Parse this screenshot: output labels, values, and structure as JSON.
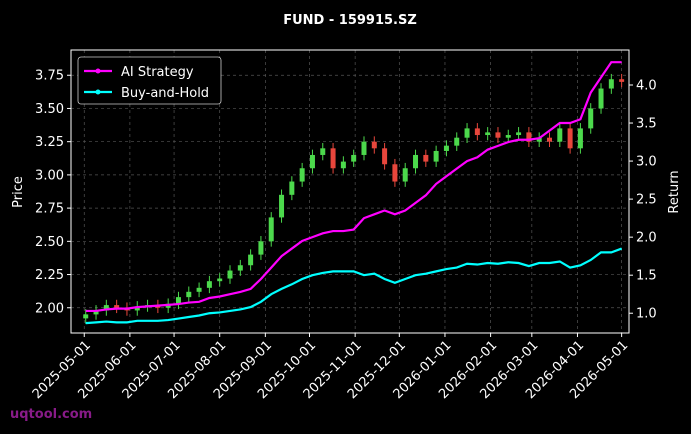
{
  "chart_data": {
    "type": "candlestick_returns",
    "title": "FUND - 159915.SZ",
    "ylabel": "Price",
    "y2label": "Return",
    "watermark": "uqtool.com",
    "x": [
      "2025-05-02",
      "2025-05-09",
      "2025-05-16",
      "2025-05-23",
      "2025-05-30",
      "2025-06-06",
      "2025-06-13",
      "2025-06-20",
      "2025-06-27",
      "2025-07-04",
      "2025-07-11",
      "2025-07-18",
      "2025-07-25",
      "2025-08-01",
      "2025-08-08",
      "2025-08-15",
      "2025-08-22",
      "2025-08-29",
      "2025-09-05",
      "2025-09-12",
      "2025-09-19",
      "2025-09-26",
      "2025-10-03",
      "2025-10-10",
      "2025-10-17",
      "2025-10-24",
      "2025-10-31",
      "2025-11-07",
      "2025-11-14",
      "2025-11-21",
      "2025-11-28",
      "2025-12-05",
      "2025-12-12",
      "2025-12-19",
      "2025-12-26",
      "2026-01-02",
      "2026-01-09",
      "2026-01-16",
      "2026-01-23",
      "2026-01-30",
      "2026-02-06",
      "2026-02-13",
      "2026-02-20",
      "2026-02-27",
      "2026-03-06",
      "2026-03-13",
      "2026-03-20",
      "2026-03-27",
      "2026-04-03",
      "2026-04-10",
      "2026-04-17",
      "2026-04-24",
      "2026-05-01"
    ],
    "open": [
      1.92,
      1.95,
      1.98,
      2.02,
      2.0,
      1.98,
      2.01,
      2.02,
      2.0,
      2.03,
      2.08,
      2.12,
      2.15,
      2.2,
      2.22,
      2.28,
      2.32,
      2.4,
      2.5,
      2.68,
      2.85,
      2.95,
      3.05,
      3.15,
      3.2,
      3.05,
      3.1,
      3.15,
      3.25,
      3.2,
      3.08,
      2.95,
      3.05,
      3.15,
      3.1,
      3.18,
      3.22,
      3.28,
      3.35,
      3.3,
      3.32,
      3.28,
      3.3,
      3.32,
      3.25,
      3.28,
      3.25,
      3.35,
      3.2,
      3.35,
      3.5,
      3.65,
      3.72
    ],
    "high": [
      1.99,
      2.02,
      2.06,
      2.06,
      2.04,
      2.05,
      2.06,
      2.06,
      2.07,
      2.12,
      2.16,
      2.19,
      2.24,
      2.26,
      2.32,
      2.36,
      2.44,
      2.54,
      2.72,
      2.89,
      2.99,
      3.09,
      3.19,
      3.24,
      3.24,
      3.14,
      3.19,
      3.29,
      3.29,
      3.24,
      3.12,
      3.09,
      3.19,
      3.19,
      3.22,
      3.26,
      3.32,
      3.39,
      3.39,
      3.36,
      3.36,
      3.34,
      3.36,
      3.36,
      3.32,
      3.32,
      3.39,
      3.39,
      3.39,
      3.54,
      3.69,
      3.76,
      3.76
    ],
    "low": [
      1.88,
      1.91,
      1.94,
      1.96,
      1.94,
      1.94,
      1.97,
      1.96,
      1.96,
      1.99,
      2.04,
      2.08,
      2.11,
      2.16,
      2.18,
      2.24,
      2.28,
      2.36,
      2.46,
      2.64,
      2.81,
      2.91,
      3.01,
      3.11,
      3.01,
      3.01,
      3.06,
      3.11,
      3.16,
      3.04,
      2.91,
      2.91,
      3.01,
      3.06,
      3.06,
      3.14,
      3.18,
      3.24,
      3.26,
      3.26,
      3.24,
      3.24,
      3.26,
      3.21,
      3.21,
      3.21,
      3.21,
      3.16,
      3.16,
      3.31,
      3.46,
      3.61,
      3.66
    ],
    "close": [
      1.95,
      1.98,
      2.02,
      2.0,
      1.98,
      2.01,
      2.02,
      2.0,
      2.03,
      2.08,
      2.12,
      2.15,
      2.2,
      2.22,
      2.28,
      2.32,
      2.4,
      2.5,
      2.68,
      2.85,
      2.95,
      3.05,
      3.15,
      3.2,
      3.05,
      3.1,
      3.15,
      3.25,
      3.2,
      3.08,
      2.95,
      3.05,
      3.15,
      3.1,
      3.18,
      3.22,
      3.28,
      3.35,
      3.3,
      3.32,
      3.28,
      3.3,
      3.32,
      3.25,
      3.28,
      3.25,
      3.35,
      3.2,
      3.35,
      3.5,
      3.65,
      3.72,
      3.7
    ],
    "up_color": "#4cd94c",
    "down_color": "#e8463c",
    "series": [
      {
        "name": "AI Strategy",
        "color": "#ff00ff",
        "axis": "y2",
        "values": [
          1.03,
          1.03,
          1.05,
          1.06,
          1.06,
          1.08,
          1.09,
          1.1,
          1.11,
          1.12,
          1.14,
          1.15,
          1.2,
          1.22,
          1.25,
          1.28,
          1.32,
          1.45,
          1.6,
          1.75,
          1.85,
          1.95,
          2.0,
          2.05,
          2.08,
          2.08,
          2.1,
          2.25,
          2.3,
          2.35,
          2.3,
          2.35,
          2.45,
          2.55,
          2.7,
          2.8,
          2.9,
          3.0,
          3.05,
          3.15,
          3.2,
          3.25,
          3.28,
          3.28,
          3.3,
          3.4,
          3.5,
          3.5,
          3.55,
          3.9,
          4.1,
          4.3,
          4.3
        ]
      },
      {
        "name": "Buy-and-Hold",
        "color": "#00ffff",
        "axis": "y2",
        "values": [
          0.87,
          0.88,
          0.89,
          0.88,
          0.88,
          0.9,
          0.9,
          0.9,
          0.91,
          0.93,
          0.95,
          0.97,
          1.0,
          1.01,
          1.03,
          1.05,
          1.08,
          1.15,
          1.25,
          1.32,
          1.38,
          1.45,
          1.5,
          1.53,
          1.55,
          1.55,
          1.55,
          1.5,
          1.52,
          1.45,
          1.4,
          1.45,
          1.5,
          1.52,
          1.55,
          1.58,
          1.6,
          1.65,
          1.64,
          1.66,
          1.65,
          1.67,
          1.66,
          1.62,
          1.66,
          1.66,
          1.68,
          1.6,
          1.63,
          1.7,
          1.8,
          1.8,
          1.85
        ]
      }
    ],
    "xlim": [
      "2025-04-22",
      "2026-05-06"
    ],
    "xticks": [
      "2025-05-01",
      "2025-06-01",
      "2025-07-01",
      "2025-08-01",
      "2025-09-01",
      "2025-10-01",
      "2025-11-01",
      "2025-12-01",
      "2026-01-01",
      "2026-02-01",
      "2026-03-01",
      "2026-04-01",
      "2026-05-01"
    ],
    "ylim": [
      1.81,
      3.94
    ],
    "yticks": [
      {
        "value": 2,
        "label": "2.00"
      },
      {
        "value": 2.25,
        "label": "2.25"
      },
      {
        "value": 2.5,
        "label": "2.50"
      },
      {
        "value": 2.75,
        "label": "2.75"
      },
      {
        "value": 3,
        "label": "3.00"
      },
      {
        "value": 3.25,
        "label": "3.25"
      },
      {
        "value": 3.5,
        "label": "3.50"
      },
      {
        "value": 3.75,
        "label": "3.75"
      }
    ],
    "y2lim": [
      0.74,
      4.46
    ],
    "y2ticks": [
      {
        "value": 1,
        "label": "1.0"
      },
      {
        "value": 1.5,
        "label": "1.5"
      },
      {
        "value": 2,
        "label": "2.0"
      },
      {
        "value": 2.5,
        "label": "2.5"
      },
      {
        "value": 3,
        "label": "3.0"
      },
      {
        "value": 3.5,
        "label": "3.5"
      },
      {
        "value": 4,
        "label": "4.0"
      }
    ],
    "grid": true,
    "legend": "upper left"
  }
}
